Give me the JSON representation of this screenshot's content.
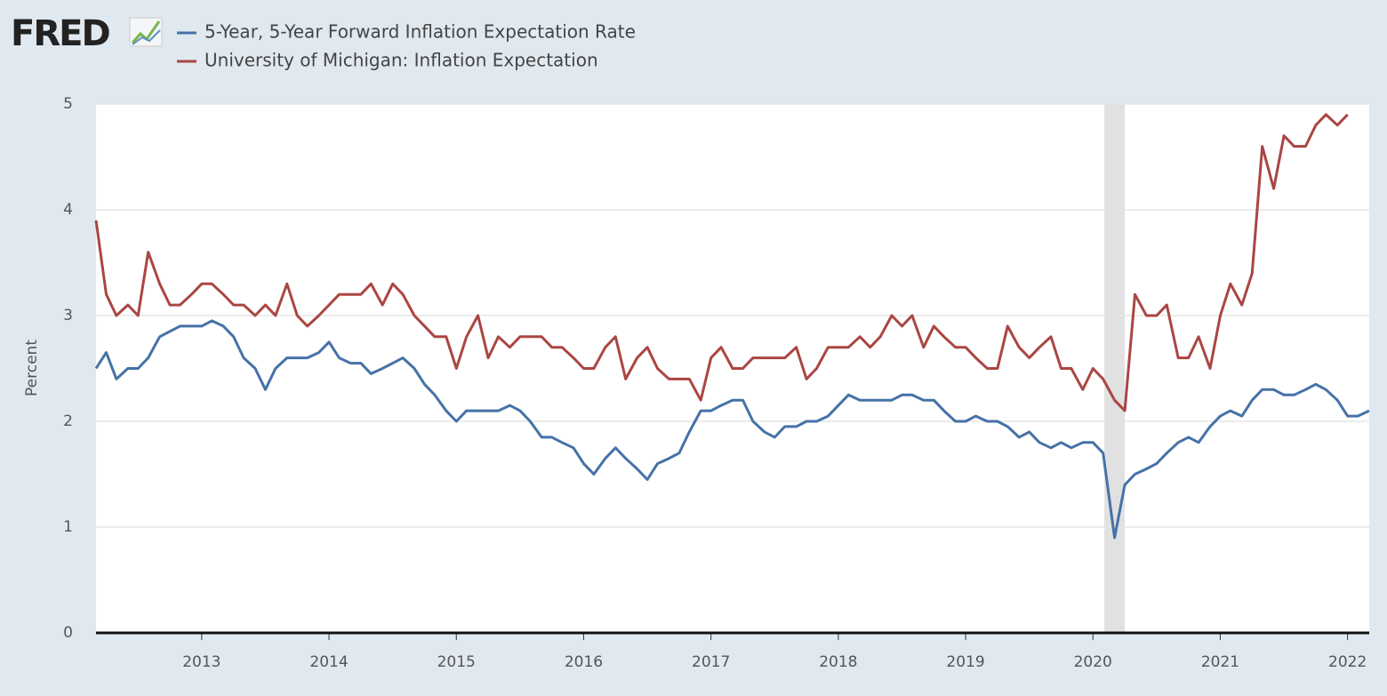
{
  "chart_data": {
    "type": "line",
    "logo": "FRED",
    "ylabel": "Percent",
    "x": [
      2012.17,
      2012.25,
      2012.33,
      2012.42,
      2012.5,
      2012.58,
      2012.67,
      2012.75,
      2012.83,
      2012.92,
      2013.0,
      2013.08,
      2013.17,
      2013.25,
      2013.33,
      2013.42,
      2013.5,
      2013.58,
      2013.67,
      2013.75,
      2013.83,
      2013.92,
      2014.0,
      2014.08,
      2014.17,
      2014.25,
      2014.33,
      2014.42,
      2014.5,
      2014.58,
      2014.67,
      2014.75,
      2014.83,
      2014.92,
      2015.0,
      2015.08,
      2015.17,
      2015.25,
      2015.33,
      2015.42,
      2015.5,
      2015.58,
      2015.67,
      2015.75,
      2015.83,
      2015.92,
      2016.0,
      2016.08,
      2016.17,
      2016.25,
      2016.33,
      2016.42,
      2016.5,
      2016.58,
      2016.67,
      2016.75,
      2016.83,
      2016.92,
      2017.0,
      2017.08,
      2017.17,
      2017.25,
      2017.33,
      2017.42,
      2017.5,
      2017.58,
      2017.67,
      2017.75,
      2017.83,
      2017.92,
      2018.0,
      2018.08,
      2018.17,
      2018.25,
      2018.33,
      2018.42,
      2018.5,
      2018.58,
      2018.67,
      2018.75,
      2018.83,
      2018.92,
      2019.0,
      2019.08,
      2019.17,
      2019.25,
      2019.33,
      2019.42,
      2019.5,
      2019.58,
      2019.67,
      2019.75,
      2019.83,
      2019.92,
      2020.0,
      2020.08,
      2020.17,
      2020.25,
      2020.33,
      2020.42,
      2020.5,
      2020.58,
      2020.67,
      2020.75,
      2020.83,
      2020.92,
      2021.0,
      2021.08,
      2021.17,
      2021.25,
      2021.33,
      2021.42,
      2021.5,
      2021.58,
      2021.67,
      2021.75,
      2021.83,
      2021.92,
      2022.0,
      2022.08,
      2022.17
    ],
    "series": [
      {
        "name": "5-Year, 5-Year Forward Inflation Expectation Rate",
        "color": "#4572a7",
        "values": [
          2.5,
          2.65,
          2.4,
          2.5,
          2.5,
          2.6,
          2.8,
          2.85,
          2.9,
          2.9,
          2.9,
          2.95,
          2.9,
          2.8,
          2.6,
          2.5,
          2.3,
          2.5,
          2.6,
          2.6,
          2.6,
          2.65,
          2.75,
          2.6,
          2.55,
          2.55,
          2.45,
          2.5,
          2.55,
          2.6,
          2.5,
          2.35,
          2.25,
          2.1,
          2.0,
          2.1,
          2.1,
          2.1,
          2.1,
          2.15,
          2.1,
          2.0,
          1.85,
          1.85,
          1.8,
          1.75,
          1.6,
          1.5,
          1.65,
          1.75,
          1.65,
          1.55,
          1.45,
          1.6,
          1.65,
          1.7,
          1.9,
          2.1,
          2.1,
          2.15,
          2.2,
          2.2,
          2.0,
          1.9,
          1.85,
          1.95,
          1.95,
          2.0,
          2.0,
          2.05,
          2.15,
          2.25,
          2.2,
          2.2,
          2.2,
          2.2,
          2.25,
          2.25,
          2.2,
          2.2,
          2.1,
          2.0,
          2.0,
          2.05,
          2.0,
          2.0,
          1.95,
          1.85,
          1.9,
          1.8,
          1.75,
          1.8,
          1.75,
          1.8,
          1.8,
          1.7,
          0.9,
          1.4,
          1.5,
          1.55,
          1.6,
          1.7,
          1.8,
          1.85,
          1.8,
          1.95,
          2.05,
          2.1,
          2.05,
          2.2,
          2.3,
          2.3,
          2.25,
          2.25,
          2.3,
          2.35,
          2.3,
          2.2,
          2.05,
          2.05,
          2.1
        ]
      },
      {
        "name": "University of Michigan: Inflation Expectation",
        "color": "#aa4643",
        "values": [
          3.9,
          3.2,
          3.0,
          3.1,
          3.0,
          3.6,
          3.3,
          3.1,
          3.1,
          3.2,
          3.3,
          3.3,
          3.2,
          3.1,
          3.1,
          3.0,
          3.1,
          3.0,
          3.3,
          3.0,
          2.9,
          3.0,
          3.1,
          3.2,
          3.2,
          3.2,
          3.3,
          3.1,
          3.3,
          3.2,
          3.0,
          2.9,
          2.8,
          2.8,
          2.5,
          2.8,
          3.0,
          2.6,
          2.8,
          2.7,
          2.8,
          2.8,
          2.8,
          2.7,
          2.7,
          2.6,
          2.5,
          2.5,
          2.7,
          2.8,
          2.4,
          2.6,
          2.7,
          2.5,
          2.4,
          2.4,
          2.4,
          2.2,
          2.6,
          2.7,
          2.5,
          2.5,
          2.6,
          2.6,
          2.6,
          2.6,
          2.7,
          2.4,
          2.5,
          2.7,
          2.7,
          2.7,
          2.8,
          2.7,
          2.8,
          3.0,
          2.9,
          3.0,
          2.7,
          2.9,
          2.8,
          2.7,
          2.7,
          2.6,
          2.5,
          2.5,
          2.9,
          2.7,
          2.6,
          2.7,
          2.8,
          2.5,
          2.5,
          2.3,
          2.5,
          2.4,
          2.2,
          2.1,
          3.2,
          3.0,
          3.0,
          3.1,
          2.6,
          2.6,
          2.8,
          2.5,
          3.0,
          3.3,
          3.1,
          3.4,
          4.6,
          4.2,
          4.7,
          4.6,
          4.6,
          4.8,
          4.9,
          4.8,
          4.9,
          null,
          null
        ]
      }
    ],
    "xlim": [
      2012.17,
      2022.17
    ],
    "xticks": [
      2013,
      2014,
      2015,
      2016,
      2017,
      2018,
      2019,
      2020,
      2021,
      2022
    ],
    "ylim": [
      0,
      5
    ],
    "yticks": [
      0,
      1,
      2,
      3,
      4,
      5
    ],
    "shaded_ranges": [
      [
        2020.09,
        2020.25
      ]
    ],
    "grid": true
  }
}
